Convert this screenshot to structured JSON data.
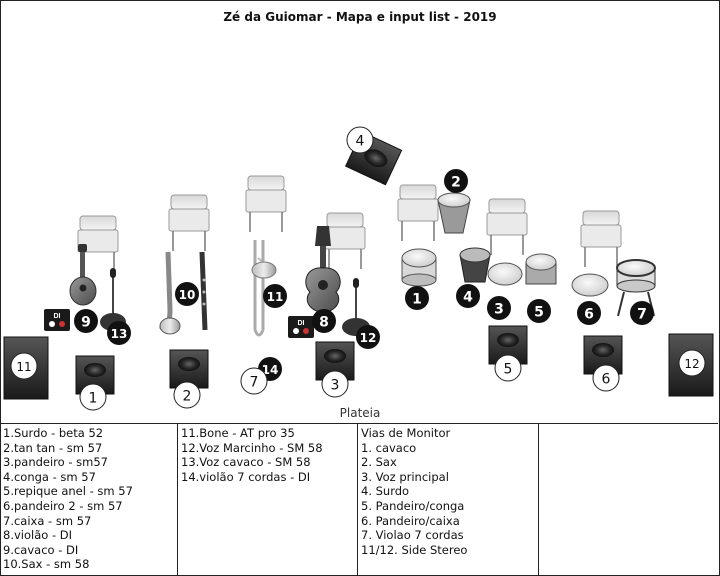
{
  "title": "Zé da Guiomar - Mapa e input list - 2019",
  "audience_label": "Plateia",
  "icons": {
    "chair": "chair-icon",
    "monitor": "monitor-wedge-icon",
    "side_fill": "side-fill-speaker-icon",
    "di": "di-box-icon",
    "mic": "microphone-icon",
    "badge": "number-badge-icon"
  },
  "colors": {
    "badge_black": "#111111",
    "badge_white": "#ffffff",
    "border": "#222222"
  },
  "badges": {
    "b1": "1",
    "b2": "2",
    "b3": "3",
    "b4": "4",
    "b5": "5",
    "b6": "6",
    "b7": "7",
    "b8": "8",
    "b9": "9",
    "b10": "10",
    "b11": "11",
    "b12": "12",
    "b13": "13",
    "b14": "14",
    "m1": "1",
    "m2": "2",
    "m3": "3",
    "m4": "4",
    "m5": "5",
    "m6": "6",
    "m7": "7",
    "m11": "11",
    "m12": "12"
  },
  "di_label": "DI",
  "input_list_a": [
    "1.Surdo - beta 52",
    "2.tan tan - sm 57",
    "3.pandeiro - sm57",
    "4.conga - sm 57",
    "5.repique anel - sm 57",
    "6.pandeiro 2 - sm 57",
    "7.caixa - sm 57",
    "8.violão - DI",
    "9.cavaco - DI",
    "10.Sax - sm 58"
  ],
  "input_list_b": [
    "11.Bone - AT pro 35",
    "12.Voz Marcinho - SM 58",
    "13.Voz cavaco - SM 58",
    "14.violão 7 cordas - DI"
  ],
  "monitor_list": [
    "Vias de Monitor",
    "1. cavaco",
    "2. Sax",
    "3. Voz principal",
    "4. Surdo",
    "5. Pandeiro/conga",
    "6. Pandeiro/caixa",
    "7. Violao 7 cordas",
    "11/12. Side Stereo"
  ]
}
